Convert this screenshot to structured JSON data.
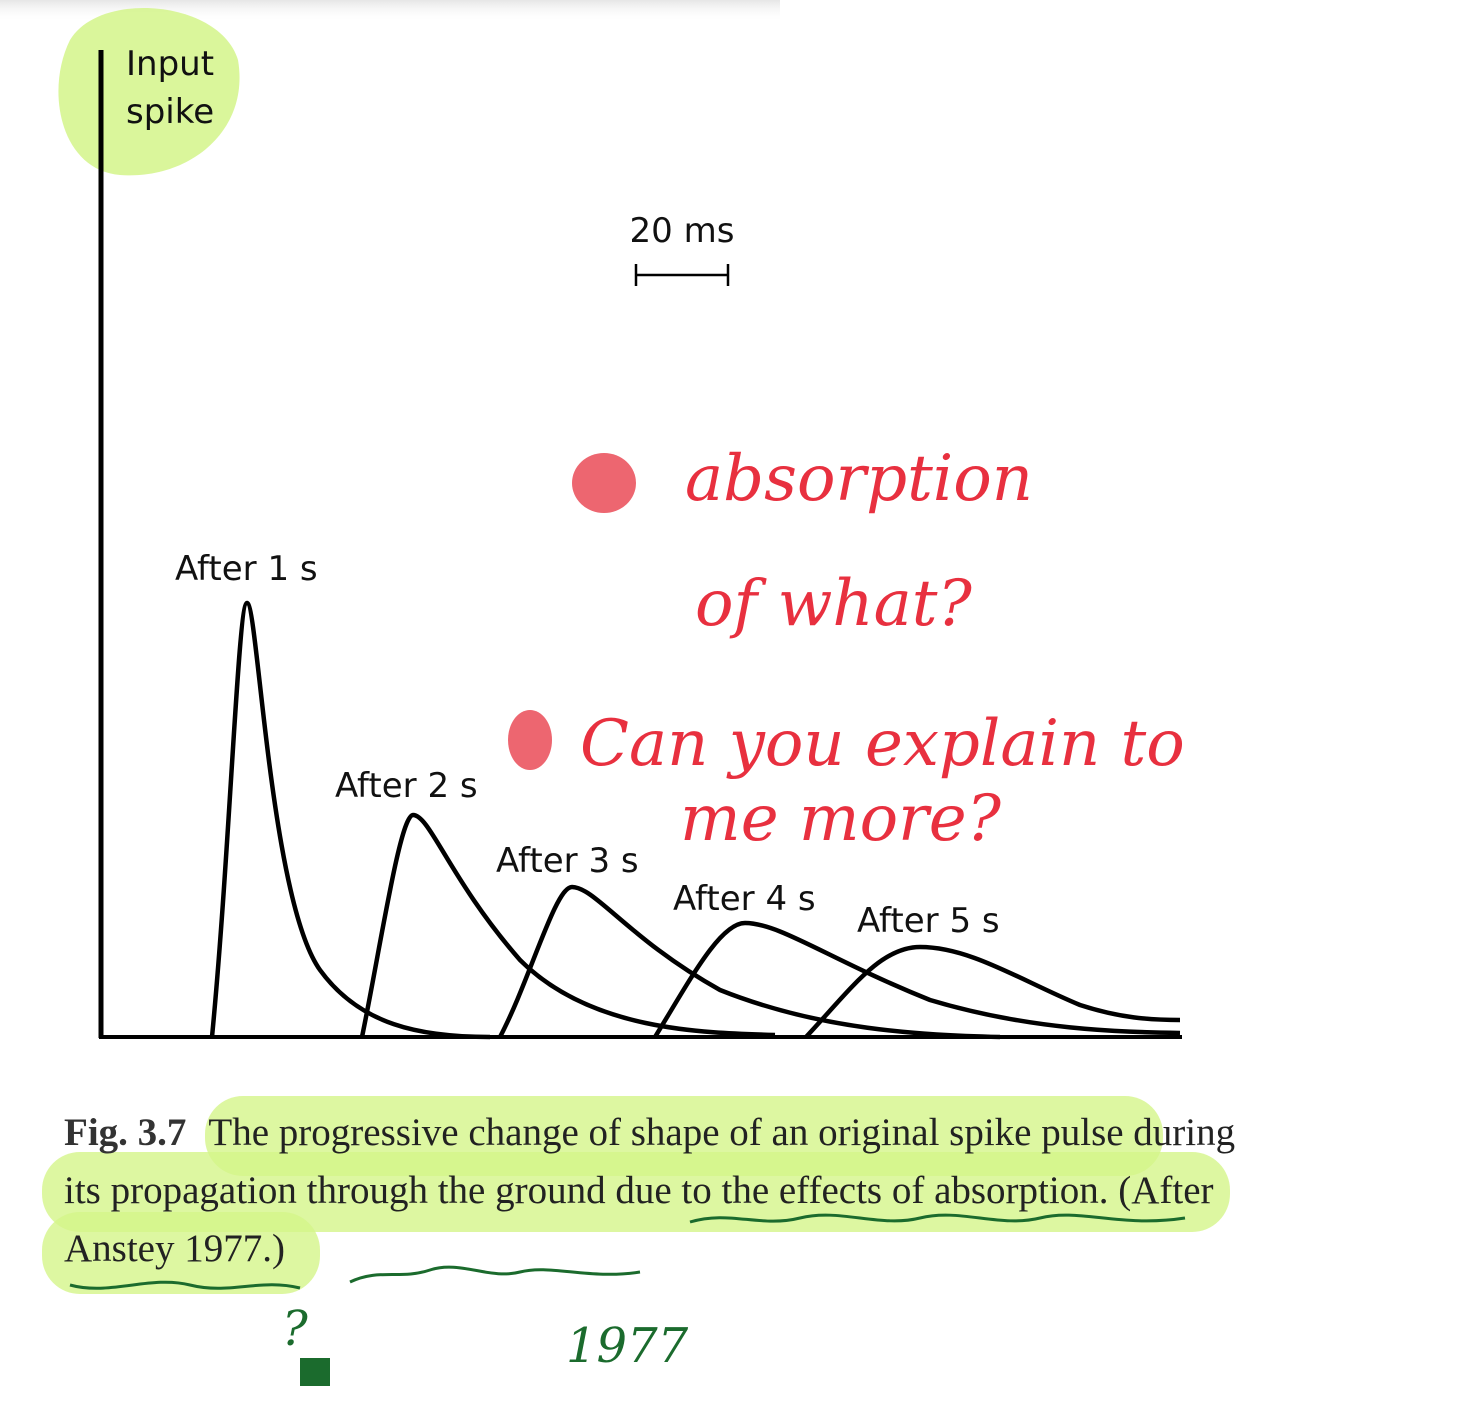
{
  "figure": {
    "y_axis_label": [
      "Input",
      "spike"
    ],
    "scale_bar": "20 ms",
    "pulse_labels": [
      "After 1 s",
      "After 2 s",
      "After 3 s",
      "After 4 s",
      "After 5 s"
    ]
  },
  "caption": {
    "number": "Fig. 3.7",
    "text": "The progressive change of shape of an original spike pulse during its propagation through the ground due to the effects of absorption.",
    "citation": "(After Anstey 1977.)"
  },
  "annotations": {
    "note_1": [
      "absorption",
      "of what?"
    ],
    "note_2": [
      "Can you explain to",
      "me more?"
    ],
    "question_mark": "?",
    "year": "1977"
  }
}
